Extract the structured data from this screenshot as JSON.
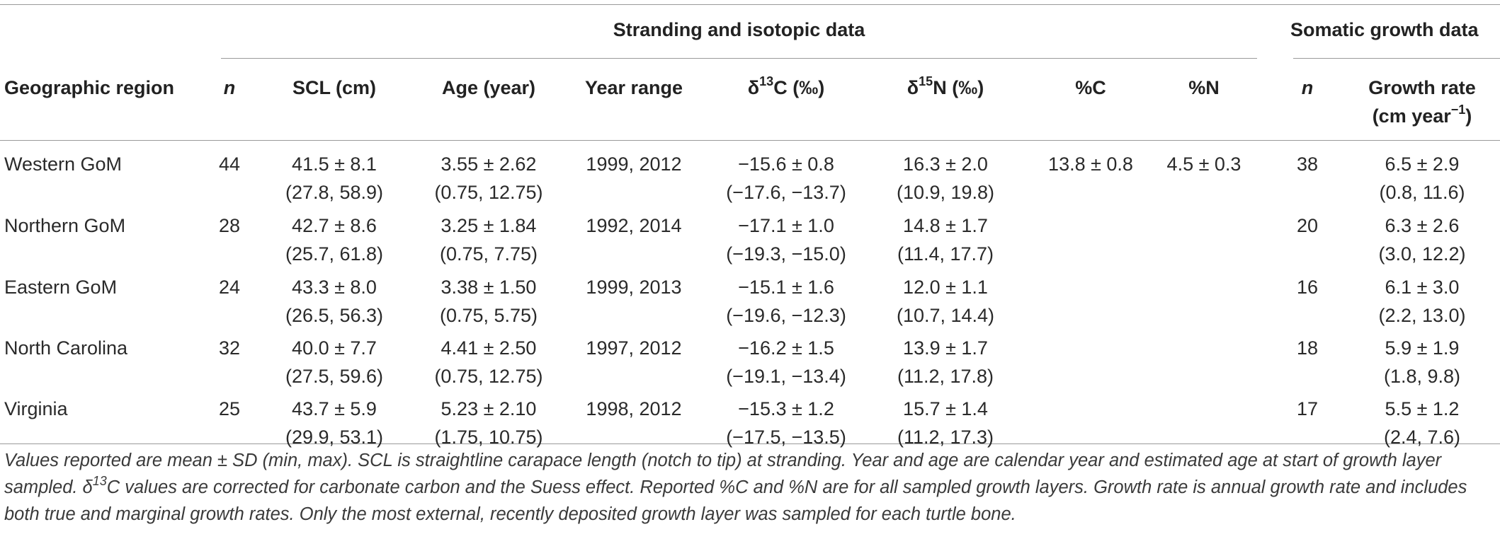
{
  "header": {
    "group_isotopic": "Stranding and isotopic data",
    "group_growth": "Somatic growth data",
    "columns": {
      "region": "Geographic region",
      "n": "n",
      "scl": "SCL (cm)",
      "age": "Age (year)",
      "year_range": "Year range",
      "d13c_prefix": "δ",
      "d13c_sup": "13",
      "d13c_suffix": "C (‰)",
      "d15n_prefix": "δ",
      "d15n_sup": "15",
      "d15n_suffix": "N (‰)",
      "pct_c": "%C",
      "pct_n": "%N",
      "growth_n": "n",
      "growth_rate_line1": "Growth rate",
      "growth_rate_line2_a": "(cm year",
      "growth_rate_line2_sup": "−1",
      "growth_rate_line2_b": ")"
    }
  },
  "rows": [
    {
      "region": "Western GoM",
      "n": "44",
      "scl": "41.5 ± 8.1",
      "scl_range": "(27.8, 58.9)",
      "age": "3.55 ± 2.62",
      "age_range": "(0.75, 12.75)",
      "years": "1999, 2012",
      "d13c": "−15.6 ± 0.8",
      "d13c_range": "(−17.6, −13.7)",
      "d15n": "16.3 ± 2.0",
      "d15n_range": "(10.9, 19.8)",
      "pct_c": "13.8 ± 0.8",
      "pct_n": "4.5 ± 0.3",
      "growth_n": "38",
      "growth": "6.5 ± 2.9",
      "growth_range": "(0.8, 11.6)"
    },
    {
      "region": "Northern GoM",
      "n": "28",
      "scl": "42.7 ± 8.6",
      "scl_range": "(25.7, 61.8)",
      "age": "3.25 ± 1.84",
      "age_range": "(0.75, 7.75)",
      "years": "1992, 2014",
      "d13c": "−17.1 ± 1.0",
      "d13c_range": "(−19.3, −15.0)",
      "d15n": "14.8 ± 1.7",
      "d15n_range": "(11.4, 17.7)",
      "pct_c": "",
      "pct_n": "",
      "growth_n": "20",
      "growth": "6.3 ± 2.6",
      "growth_range": "(3.0, 12.2)"
    },
    {
      "region": "Eastern GoM",
      "n": "24",
      "scl": "43.3 ± 8.0",
      "scl_range": "(26.5, 56.3)",
      "age": "3.38 ± 1.50",
      "age_range": "(0.75, 5.75)",
      "years": "1999, 2013",
      "d13c": "−15.1 ± 1.6",
      "d13c_range": "(−19.6, −12.3)",
      "d15n": "12.0 ± 1.1",
      "d15n_range": "(10.7, 14.4)",
      "pct_c": "",
      "pct_n": "",
      "growth_n": "16",
      "growth": "6.1 ± 3.0",
      "growth_range": "(2.2, 13.0)"
    },
    {
      "region": "North Carolina",
      "n": "32",
      "scl": "40.0 ± 7.7",
      "scl_range": "(27.5, 59.6)",
      "age": "4.41 ± 2.50",
      "age_range": "(0.75, 12.75)",
      "years": "1997, 2012",
      "d13c": "−16.2 ± 1.5",
      "d13c_range": "(−19.1, −13.4)",
      "d15n": "13.9 ± 1.7",
      "d15n_range": "(11.2, 17.8)",
      "pct_c": "",
      "pct_n": "",
      "growth_n": "18",
      "growth": "5.9 ± 1.9",
      "growth_range": "(1.8, 9.8)"
    },
    {
      "region": "Virginia",
      "n": "25",
      "scl": "43.7 ± 5.9",
      "scl_range": "(29.9, 53.1)",
      "age": "5.23 ± 2.10",
      "age_range": "(1.75, 10.75)",
      "years": "1998, 2012",
      "d13c": "−15.3 ± 1.2",
      "d13c_range": "(−17.5, −13.5)",
      "d15n": "15.7 ± 1.4",
      "d15n_range": "(11.2, 17.3)",
      "pct_c": "",
      "pct_n": "",
      "growth_n": "17",
      "growth": "5.5 ± 1.2",
      "growth_range": "(2.4, 7.6)"
    }
  ],
  "caption": {
    "part1": "Values reported are mean ± SD (min, max). SCL is straightline carapace length (notch to tip) at stranding. Year and age are calendar year and estimated age at start of growth layer sampled. δ",
    "sup": "13",
    "part2": "C values are corrected for carbonate carbon and the Suess effect. Reported %C and %N are for all sampled growth layers. Growth rate is annual growth rate and includes both true and marginal growth rates. Only the most external, recently deposited growth layer was sampled for each turtle bone."
  },
  "colors": {
    "rule": "#9a9a9a",
    "text": "#2a2a2a"
  }
}
